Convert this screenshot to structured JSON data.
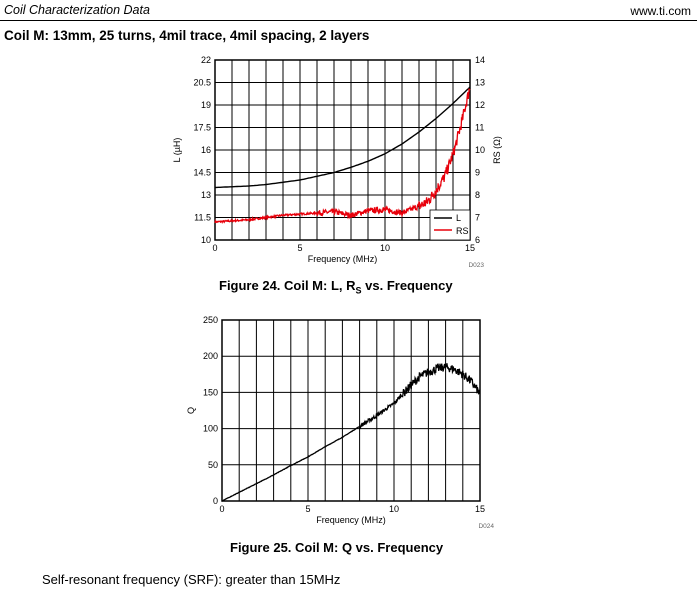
{
  "header": {
    "left": "Coil Characterization Data",
    "right": "www.ti.com"
  },
  "section_title": "Coil M: 13mm, 25 turns, 4mil trace, 4mil spacing, 2 layers",
  "figure24": {
    "caption_prefix": "Figure 24. Coil M: L, R",
    "caption_sub": "S",
    "caption_suffix": " vs. Frequency",
    "code": "D023"
  },
  "figure25": {
    "caption": "Figure 25. Coil M: Q vs. Frequency",
    "code": "D024"
  },
  "footer_text": "Self-resonant frequency (SRF): greater than 15MHz",
  "colors": {
    "L": "#000000",
    "Rs": "#e8000b",
    "Q": "#000000",
    "grid": "#000000"
  },
  "chart_data": [
    {
      "type": "line",
      "title": "Figure 24. Coil M: L, RS vs. Frequency",
      "xlabel": "Frequency (MHz)",
      "ylabel": "L (µH)",
      "y2label": "RS (Ω)",
      "xlim": [
        0,
        15
      ],
      "ylim": [
        10,
        22
      ],
      "y2lim": [
        6,
        14
      ],
      "xticks": [
        "0",
        "5",
        "10",
        "15"
      ],
      "yticks": [
        "10",
        "11.5",
        "13",
        "14.5",
        "16",
        "17.5",
        "19",
        "20.5",
        "22"
      ],
      "y2ticks": [
        "6",
        "7",
        "8",
        "9",
        "10",
        "11",
        "12",
        "13",
        "14"
      ],
      "legend": [
        "L",
        "RS"
      ],
      "legend_position": "bottom-right",
      "series": [
        {
          "name": "L",
          "axis": "left",
          "x": [
            0,
            1,
            2,
            3,
            4,
            5,
            6,
            7,
            8,
            9,
            10,
            11,
            12,
            13,
            14,
            15
          ],
          "y": [
            13.5,
            13.55,
            13.6,
            13.7,
            13.85,
            14.0,
            14.25,
            14.5,
            14.85,
            15.25,
            15.75,
            16.4,
            17.2,
            18.1,
            19.1,
            20.2
          ]
        },
        {
          "name": "RS",
          "axis": "right",
          "x": [
            0,
            1,
            2,
            3,
            4,
            5,
            6,
            7,
            8,
            9,
            10,
            11,
            12,
            12.5,
            13,
            13.5,
            14,
            14.5,
            15
          ],
          "y": [
            6.8,
            6.85,
            6.9,
            7.0,
            7.1,
            7.15,
            7.2,
            7.25,
            7.1,
            7.3,
            7.35,
            7.2,
            7.5,
            7.7,
            8.2,
            8.8,
            9.8,
            11.2,
            12.8
          ]
        }
      ]
    },
    {
      "type": "line",
      "title": "Figure 25. Coil M: Q vs. Frequency",
      "xlabel": "Frequency (MHz)",
      "ylabel": "Q",
      "xlim": [
        0,
        15
      ],
      "ylim": [
        0,
        250
      ],
      "xticks": [
        "0",
        "5",
        "10",
        "15"
      ],
      "yticks": [
        "0",
        "50",
        "100",
        "150",
        "200",
        "250"
      ],
      "series": [
        {
          "name": "Q",
          "x": [
            0,
            1,
            2,
            3,
            4,
            5,
            6,
            7,
            8,
            9,
            10,
            11,
            11.5,
            12,
            12.5,
            13,
            13.5,
            14,
            14.5,
            15
          ],
          "y": [
            0,
            12,
            24,
            36,
            49,
            61,
            75,
            88,
            103,
            118,
            135,
            160,
            172,
            178,
            183,
            185,
            182,
            175,
            165,
            148
          ]
        }
      ]
    }
  ]
}
